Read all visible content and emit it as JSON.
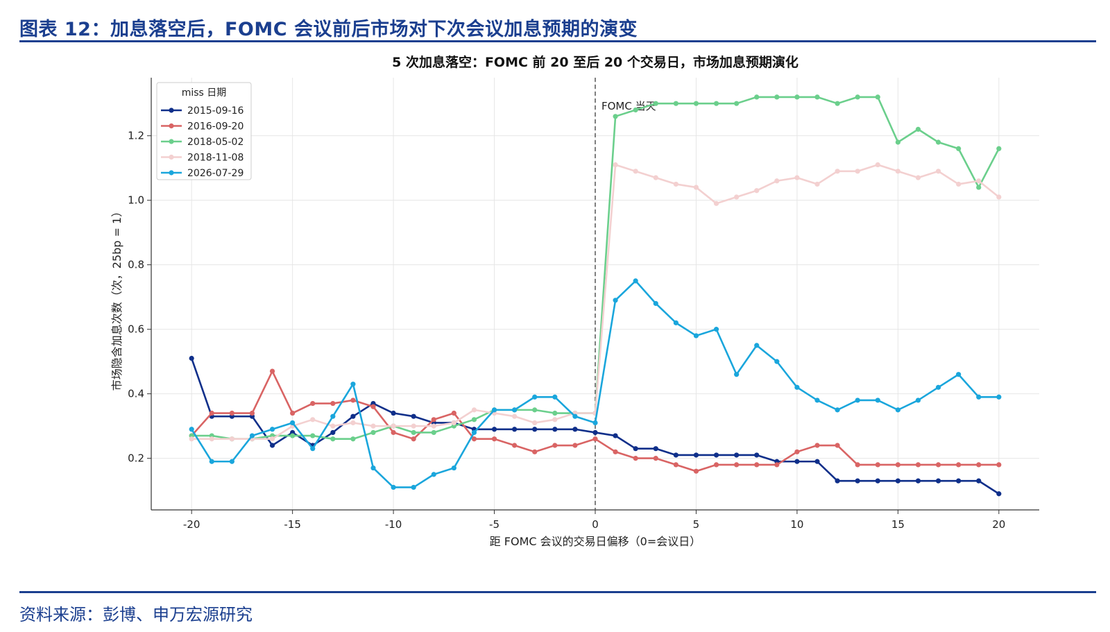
{
  "figure_title": "图表 12：加息落空后，FOMC 会议前后市场对下次会议加息预期的演变",
  "source_note": "资料来源：彭博、申万宏源研究",
  "chart_data": {
    "type": "line",
    "title": "5 次加息落空：FOMC 前 20 至后 20 个交易日，市场加息预期演化",
    "xlabel": "距 FOMC 会议的交易日偏移（0=会议日）",
    "ylabel": "市场隐含加息次数（次，25bp = 1）",
    "xlim": [
      -22,
      22
    ],
    "ylim": [
      0.04,
      1.38
    ],
    "xticks": [
      -20,
      -15,
      -10,
      -5,
      0,
      5,
      10,
      15,
      20
    ],
    "yticks": [
      0.2,
      0.4,
      0.6,
      0.8,
      1.0,
      1.2
    ],
    "grid": true,
    "legend_title": "miss 日期",
    "legend_position": "top-left",
    "annotation": {
      "text": "FOMC 当天",
      "x": 0
    },
    "x": [
      -20,
      -19,
      -18,
      -17,
      -16,
      -15,
      -14,
      -13,
      -12,
      -11,
      -10,
      -9,
      -8,
      -7,
      -6,
      -5,
      -4,
      -3,
      -2,
      -1,
      0,
      1,
      2,
      3,
      4,
      5,
      6,
      7,
      8,
      9,
      10,
      11,
      12,
      13,
      14,
      15,
      16,
      17,
      18,
      19,
      20
    ],
    "series": [
      {
        "name": "2015-09-16",
        "color": "#0f2f8a",
        "values": [
          0.51,
          0.33,
          0.33,
          0.33,
          0.24,
          0.28,
          0.24,
          0.28,
          0.33,
          0.37,
          0.34,
          0.33,
          0.31,
          0.31,
          0.29,
          0.29,
          0.29,
          0.29,
          0.29,
          0.29,
          0.28,
          0.27,
          0.23,
          0.23,
          0.21,
          0.21,
          0.21,
          0.21,
          0.21,
          0.19,
          0.19,
          0.19,
          0.13,
          0.13,
          0.13,
          0.13,
          0.13,
          0.13,
          0.13,
          0.13,
          0.09
        ]
      },
      {
        "name": "2016-09-20",
        "color": "#d96464",
        "values": [
          0.27,
          0.34,
          0.34,
          0.34,
          0.47,
          0.34,
          0.37,
          0.37,
          0.38,
          0.36,
          0.28,
          0.26,
          0.32,
          0.34,
          0.26,
          0.26,
          0.24,
          0.22,
          0.24,
          0.24,
          0.26,
          0.22,
          0.2,
          0.2,
          0.18,
          0.16,
          0.18,
          0.18,
          0.18,
          0.18,
          0.22,
          0.24,
          0.24,
          0.18,
          0.18,
          0.18,
          0.18,
          0.18,
          0.18,
          0.18,
          0.18
        ]
      },
      {
        "name": "2018-05-02",
        "color": "#6bcf8c",
        "values": [
          0.27,
          0.27,
          0.26,
          0.26,
          0.27,
          0.27,
          0.27,
          0.26,
          0.26,
          0.28,
          0.3,
          0.28,
          0.28,
          0.3,
          0.32,
          0.35,
          0.35,
          0.35,
          0.34,
          0.34,
          0.34,
          1.26,
          1.28,
          1.3,
          1.3,
          1.3,
          1.3,
          1.3,
          1.32,
          1.32,
          1.32,
          1.32,
          1.3,
          1.32,
          1.32,
          1.18,
          1.22,
          1.18,
          1.16,
          1.04,
          1.16
        ]
      },
      {
        "name": "2018-11-08",
        "color": "#f3d0d0",
        "values": [
          0.26,
          0.26,
          0.26,
          0.26,
          0.26,
          0.3,
          0.32,
          0.3,
          0.31,
          0.3,
          0.3,
          0.3,
          0.3,
          0.31,
          0.35,
          0.34,
          0.33,
          0.31,
          0.32,
          0.34,
          0.34,
          1.11,
          1.09,
          1.07,
          1.05,
          1.04,
          0.99,
          1.01,
          1.03,
          1.06,
          1.07,
          1.05,
          1.09,
          1.09,
          1.11,
          1.09,
          1.07,
          1.09,
          1.05,
          1.06,
          1.01
        ]
      },
      {
        "name": "2026-07-29",
        "color": "#1aa6dc",
        "values": [
          0.29,
          0.19,
          0.19,
          0.27,
          0.29,
          0.31,
          0.23,
          0.33,
          0.43,
          0.17,
          0.11,
          0.11,
          0.15,
          0.17,
          0.28,
          0.35,
          0.35,
          0.39,
          0.39,
          0.33,
          0.31,
          0.69,
          0.75,
          0.68,
          0.62,
          0.58,
          0.6,
          0.46,
          0.55,
          0.5,
          0.42,
          0.38,
          0.35,
          0.38,
          0.38,
          0.35,
          0.38,
          0.42,
          0.46,
          0.39,
          0.39
        ]
      }
    ]
  }
}
